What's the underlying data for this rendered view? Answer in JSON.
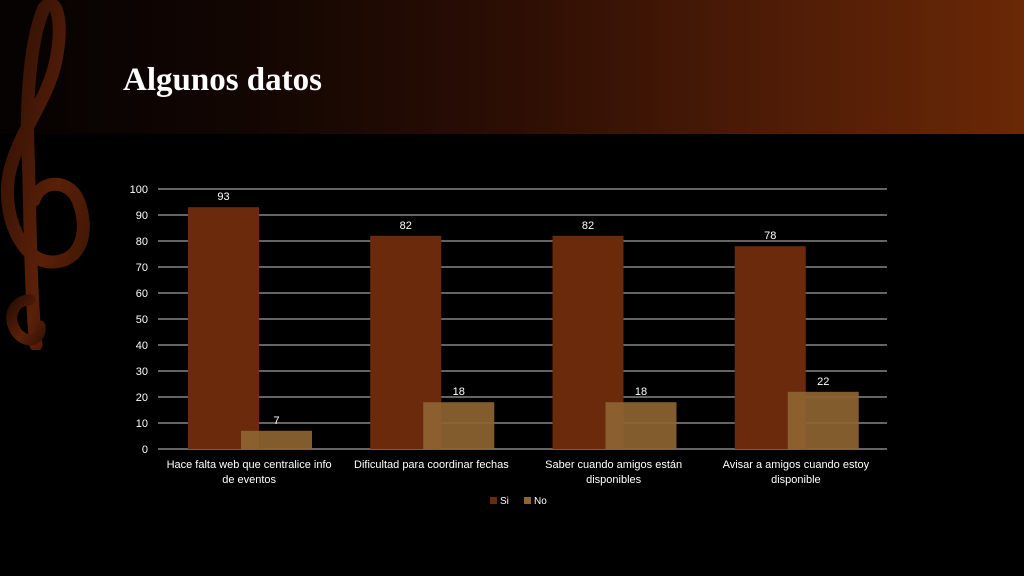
{
  "slide": {
    "title": "Algunos datos",
    "icon": "treble-clef-icon"
  },
  "colors": {
    "si": "#6b2a0c",
    "no": "#8e6432",
    "grid": "#c8c8c8",
    "text": "#ffffff"
  },
  "chart_data": {
    "type": "bar",
    "title": "",
    "xlabel": "",
    "ylabel": "",
    "categories": [
      [
        "Hace falta web que centralice info",
        "de eventos"
      ],
      [
        "Dificultad para coordinar fechas"
      ],
      [
        "Saber cuando amigos están",
        "disponibles"
      ],
      [
        "Avisar a amigos cuando estoy",
        "disponible"
      ]
    ],
    "series": [
      {
        "name": "Si",
        "values": [
          93,
          82,
          82,
          78
        ]
      },
      {
        "name": "No",
        "values": [
          7,
          18,
          18,
          22
        ]
      }
    ],
    "ylim": [
      0,
      100
    ],
    "yticks": [
      0,
      10,
      20,
      30,
      40,
      50,
      60,
      70,
      80,
      90,
      100
    ],
    "grid": true,
    "data_labels": true,
    "legend": "bottom-center"
  }
}
